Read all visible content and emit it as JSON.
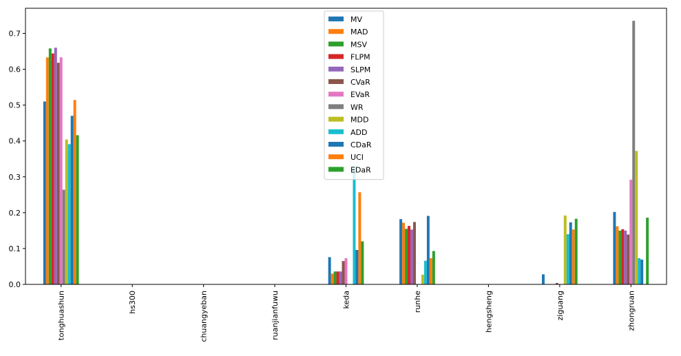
{
  "chart_data": {
    "type": "bar",
    "title": "",
    "xlabel": "",
    "ylabel": "",
    "ylim": [
      0,
      0.77
    ],
    "yticks": [
      0.0,
      0.1,
      0.2,
      0.3,
      0.4,
      0.5,
      0.6,
      0.7
    ],
    "ytick_labels": [
      "0.0",
      "0.1",
      "0.2",
      "0.3",
      "0.4",
      "0.5",
      "0.6",
      "0.7"
    ],
    "grid": false,
    "legend_position": "top-center",
    "categories": [
      "tonghuashun",
      "hs300",
      "chuangyeban",
      "ruanjianfuwu",
      "keda",
      "runhe",
      "hengsheng",
      "ziguang",
      "zhongruan"
    ],
    "series": [
      {
        "name": "MV",
        "color": "#1f77b4",
        "values": [
          0.51,
          0,
          0,
          0,
          0.076,
          0.182,
          0,
          0.028,
          0.202
        ]
      },
      {
        "name": "MAD",
        "color": "#ff7f0e",
        "values": [
          0.633,
          0,
          0,
          0,
          0.03,
          0.172,
          0,
          0.0,
          0.162
        ]
      },
      {
        "name": "MSV",
        "color": "#2ca02c",
        "values": [
          0.658,
          0,
          0,
          0,
          0.036,
          0.155,
          0,
          0.0,
          0.15
        ]
      },
      {
        "name": "FLPM",
        "color": "#d62728",
        "values": [
          0.644,
          0,
          0,
          0,
          0.036,
          0.163,
          0,
          0.0,
          0.154
        ]
      },
      {
        "name": "SLPM",
        "color": "#9467bd",
        "values": [
          0.66,
          0,
          0,
          0,
          0.036,
          0.153,
          0,
          0.0,
          0.15
        ]
      },
      {
        "name": "CVaR",
        "color": "#8c564b",
        "values": [
          0.618,
          0,
          0,
          0,
          0.065,
          0.174,
          0,
          0.004,
          0.139
        ]
      },
      {
        "name": "EVaR",
        "color": "#e377c2",
        "values": [
          0.633,
          0,
          0,
          0,
          0.073,
          0.0,
          0,
          0.0,
          0.292
        ]
      },
      {
        "name": "WR",
        "color": "#7f7f7f",
        "values": [
          0.264,
          0,
          0,
          0,
          0.0,
          0.0,
          0,
          0.0,
          0.735
        ]
      },
      {
        "name": "MDD",
        "color": "#bcbd22",
        "values": [
          0.404,
          0,
          0,
          0,
          0.0,
          0.027,
          0,
          0.192,
          0.372
        ]
      },
      {
        "name": "ADD",
        "color": "#17becf",
        "values": [
          0.391,
          0,
          0,
          0,
          0.33,
          0.066,
          0,
          0.14,
          0.073
        ]
      },
      {
        "name": "CDaR",
        "color": "#1f77b4",
        "values": [
          0.47,
          0,
          0,
          0,
          0.096,
          0.191,
          0,
          0.173,
          0.069
        ]
      },
      {
        "name": "UCI",
        "color": "#ff7f0e",
        "values": [
          0.514,
          0,
          0,
          0,
          0.257,
          0.073,
          0,
          0.153,
          0.0
        ]
      },
      {
        "name": "EDaR",
        "color": "#2ca02c",
        "values": [
          0.416,
          0,
          0,
          0,
          0.12,
          0.093,
          0,
          0.183,
          0.186
        ]
      }
    ]
  }
}
